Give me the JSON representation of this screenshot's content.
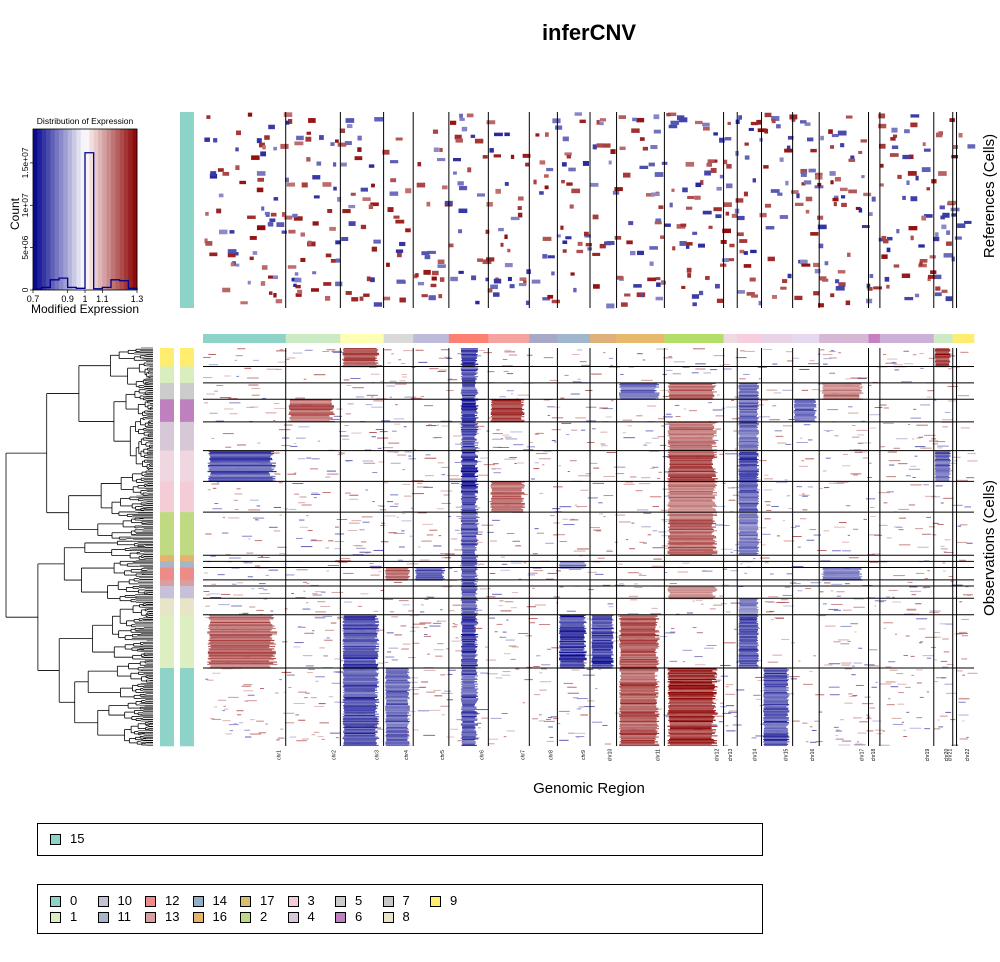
{
  "chart_data": {
    "type": "heatmap",
    "title": "inferCNV",
    "xlabel": "Genomic Region",
    "ylabel_references": "References (Cells)",
    "ylabel_observations": "Observations (Cells)",
    "chromosomes": [
      "chr1",
      "chr2",
      "chr3",
      "chr4",
      "chr5",
      "chr6",
      "chr7",
      "chr8",
      "chr9",
      "chr10",
      "chr11",
      "chr12",
      "chr13",
      "chr14",
      "chr15",
      "chr16",
      "chr17",
      "chr18",
      "chr19",
      "chr20",
      "chr21",
      "chr22"
    ],
    "chromosome_gene_share": [
      0.109,
      0.072,
      0.057,
      0.039,
      0.047,
      0.052,
      0.054,
      0.037,
      0.043,
      0.035,
      0.063,
      0.078,
      0.018,
      0.032,
      0.041,
      0.035,
      0.065,
      0.015,
      0.071,
      0.025,
      0.005,
      0.023
    ],
    "chromosome_colors": [
      "#8DD3C7",
      "#CCEBC5",
      "#FFFFB3",
      "#D9D9D9",
      "#BEBADA",
      "#FB8072",
      "#F4A3A0",
      "#A8A8C8",
      "#9FB6CC",
      "#E0B07A",
      "#E8B96A",
      "#B3DE69",
      "#F0D9E0",
      "#F8CDE0",
      "#E8D4E6",
      "#E6D8EE",
      "#D6B8D6",
      "#C77FC0",
      "#CCB0D8",
      "#CCEBC5",
      "#FFED6F",
      "#FFED6F"
    ],
    "expression_histogram": {
      "title": "Distribution of Expression",
      "xlabel": "Modified Expression",
      "ylabel": "Count",
      "x_ticks": [
        "0.7",
        "0.9",
        "1",
        "1.1",
        "1.3"
      ],
      "y_ticks": [
        "0",
        "5e+06",
        "1e+07",
        "1.5e+07"
      ],
      "xlim": [
        0.7,
        1.3
      ],
      "ylim": [
        0,
        19000000
      ],
      "bin_edges": [
        0.7,
        0.75,
        0.8,
        0.85,
        0.9,
        0.95,
        1.0,
        1.05,
        1.1,
        1.15,
        1.2,
        1.25,
        1.3
      ],
      "counts": [
        100000,
        300000,
        1200000,
        1400000,
        300000,
        200000,
        16200000,
        150000,
        300000,
        1200000,
        1100000,
        200000
      ],
      "color_scale": [
        "#00008B",
        "#FFFFFF",
        "#8B0000"
      ]
    },
    "reference_groups": [
      {
        "name": "15",
        "color": "#8DD3C7",
        "cells": 100
      }
    ],
    "observation_groups": [
      {
        "name": "9",
        "color": "#FFED6F",
        "cells": 18
      },
      {
        "name": "1",
        "color": "#D9EEBC",
        "cells": 16
      },
      {
        "name": "5",
        "color": "#CCCCCC",
        "cells": 16
      },
      {
        "name": "6",
        "color": "#BF80C0",
        "cells": 22
      },
      {
        "name": "4",
        "color": "#D7C8D8",
        "cells": 28
      },
      {
        "name": "3",
        "color": "#F0D6E0",
        "cells": 30
      },
      {
        "name": "3",
        "color": "#F4CCD6",
        "cells": 30
      },
      {
        "name": "2",
        "color": "#BFDA80",
        "cells": 42
      },
      {
        "name": "16",
        "color": "#E6B26E",
        "cells": 6
      },
      {
        "name": "11",
        "color": "#A8B4C8",
        "cells": 6
      },
      {
        "name": "12",
        "color": "#EE8B88",
        "cells": 12
      },
      {
        "name": "13",
        "color": "#DA9E9E",
        "cells": 6
      },
      {
        "name": "10",
        "color": "#C8C0D8",
        "cells": 12
      },
      {
        "name": "8",
        "color": "#E8E4C8",
        "cells": 16
      },
      {
        "name": "1",
        "color": "#DDEFC0",
        "cells": 52
      },
      {
        "name": "0",
        "color": "#8DD3C7",
        "cells": 76
      }
    ],
    "cnv_patterns": [
      {
        "group": 0,
        "chr": "chr3",
        "state": "gain",
        "strength": 0.9
      },
      {
        "group": 0,
        "chr": "chr6",
        "state": "loss",
        "strength": 0.9
      },
      {
        "group": 0,
        "chr": "chr20",
        "state": "gain",
        "strength": 0.9
      },
      {
        "group": 1,
        "chr": "chr6",
        "state": "loss",
        "strength": 0.8
      },
      {
        "group": 2,
        "chr": "chr6",
        "state": "loss",
        "strength": 0.8
      },
      {
        "group": 2,
        "chr": "chr11",
        "state": "loss",
        "strength": 0.7
      },
      {
        "group": 2,
        "chr": "chr12",
        "state": "gain",
        "strength": 0.7
      },
      {
        "group": 2,
        "chr": "chr14",
        "state": "loss",
        "strength": 0.7
      },
      {
        "group": 2,
        "chr": "chr17",
        "state": "gain",
        "strength": 0.6
      },
      {
        "group": 3,
        "chr": "chr6",
        "state": "loss",
        "strength": 0.9
      },
      {
        "group": 3,
        "chr": "chr2",
        "state": "gain",
        "strength": 0.7
      },
      {
        "group": 3,
        "chr": "chr7",
        "state": "gain",
        "strength": 0.9
      },
      {
        "group": 3,
        "chr": "chr14",
        "state": "loss",
        "strength": 0.7
      },
      {
        "group": 3,
        "chr": "chr16",
        "state": "loss",
        "strength": 0.7
      },
      {
        "group": 4,
        "chr": "chr6",
        "state": "loss",
        "strength": 0.8
      },
      {
        "group": 4,
        "chr": "chr12",
        "state": "gain",
        "strength": 0.7
      },
      {
        "group": 4,
        "chr": "chr14",
        "state": "loss",
        "strength": 0.7
      },
      {
        "group": 5,
        "chr": "chr1",
        "state": "loss",
        "strength": 0.8
      },
      {
        "group": 5,
        "chr": "chr6",
        "state": "loss",
        "strength": 0.9
      },
      {
        "group": 5,
        "chr": "chr12",
        "state": "gain",
        "strength": 0.8
      },
      {
        "group": 5,
        "chr": "chr14",
        "state": "loss",
        "strength": 0.8
      },
      {
        "group": 5,
        "chr": "chr20",
        "state": "loss",
        "strength": 0.7
      },
      {
        "group": 6,
        "chr": "chr6",
        "state": "loss",
        "strength": 0.9
      },
      {
        "group": 6,
        "chr": "chr7",
        "state": "gain",
        "strength": 0.7
      },
      {
        "group": 6,
        "chr": "chr12",
        "state": "gain",
        "strength": 0.6
      },
      {
        "group": 6,
        "chr": "chr14",
        "state": "loss",
        "strength": 0.7
      },
      {
        "group": 7,
        "chr": "chr6",
        "state": "loss",
        "strength": 0.8
      },
      {
        "group": 7,
        "chr": "chr12",
        "state": "gain",
        "strength": 0.7
      },
      {
        "group": 7,
        "chr": "chr14",
        "state": "loss",
        "strength": 0.6
      },
      {
        "group": 8,
        "chr": "chr6",
        "state": "loss",
        "strength": 0.8
      },
      {
        "group": 9,
        "chr": "chr6",
        "state": "loss",
        "strength": 0.8
      },
      {
        "group": 9,
        "chr": "chr9",
        "state": "loss",
        "strength": 0.6
      },
      {
        "group": 10,
        "chr": "chr5",
        "state": "loss",
        "strength": 0.8
      },
      {
        "group": 10,
        "chr": "chr4",
        "state": "gain",
        "strength": 0.7
      },
      {
        "group": 10,
        "chr": "chr6",
        "state": "loss",
        "strength": 0.8
      },
      {
        "group": 10,
        "chr": "chr17",
        "state": "loss",
        "strength": 0.6
      },
      {
        "group": 11,
        "chr": "chr6",
        "state": "loss",
        "strength": 0.8
      },
      {
        "group": 12,
        "chr": "chr6",
        "state": "loss",
        "strength": 0.8
      },
      {
        "group": 12,
        "chr": "chr12",
        "state": "gain",
        "strength": 0.6
      },
      {
        "group": 13,
        "chr": "chr6",
        "state": "loss",
        "strength": 0.8
      },
      {
        "group": 13,
        "chr": "chr14",
        "state": "loss",
        "strength": 0.6
      },
      {
        "group": 14,
        "chr": "chr1",
        "state": "gain",
        "strength": 0.7
      },
      {
        "group": 14,
        "chr": "chr3",
        "state": "loss",
        "strength": 0.8
      },
      {
        "group": 14,
        "chr": "chr6",
        "state": "loss",
        "strength": 0.9
      },
      {
        "group": 14,
        "chr": "chr9",
        "state": "loss",
        "strength": 0.9
      },
      {
        "group": 14,
        "chr": "chr10",
        "state": "loss",
        "strength": 0.9
      },
      {
        "group": 14,
        "chr": "chr11",
        "state": "gain",
        "strength": 0.8
      },
      {
        "group": 14,
        "chr": "chr14",
        "state": "loss",
        "strength": 0.8
      },
      {
        "group": 15,
        "chr": "chr3",
        "state": "loss",
        "strength": 0.8
      },
      {
        "group": 15,
        "chr": "chr4",
        "state": "loss",
        "strength": 0.7
      },
      {
        "group": 15,
        "chr": "chr6",
        "state": "loss",
        "strength": 0.8
      },
      {
        "group": 15,
        "chr": "chr11",
        "state": "gain",
        "strength": 0.8
      },
      {
        "group": 15,
        "chr": "chr12",
        "state": "gain",
        "strength": 1.0
      },
      {
        "group": 15,
        "chr": "chr15",
        "state": "loss",
        "strength": 0.8
      }
    ],
    "legends": {
      "references": [
        {
          "label": "15",
          "color": "#8DD3C7"
        }
      ],
      "observations": [
        {
          "label": "0",
          "color": "#8DD3C7"
        },
        {
          "label": "1",
          "color": "#DDEFC0"
        },
        {
          "label": "10",
          "color": "#C8C0D8"
        },
        {
          "label": "11",
          "color": "#A8B4C8"
        },
        {
          "label": "12",
          "color": "#EE8B88"
        },
        {
          "label": "13",
          "color": "#DA9E9E"
        },
        {
          "label": "14",
          "color": "#8FB0C8"
        },
        {
          "label": "16",
          "color": "#E6B26E"
        },
        {
          "label": "17",
          "color": "#D6C070"
        },
        {
          "label": "2",
          "color": "#BFDA80"
        },
        {
          "label": "3",
          "color": "#F4CCD6"
        },
        {
          "label": "4",
          "color": "#D7C8D8"
        },
        {
          "label": "5",
          "color": "#CCCCCC"
        },
        {
          "label": "6",
          "color": "#BF80C0"
        },
        {
          "label": "7",
          "color": "#C8C8C8"
        },
        {
          "label": "8",
          "color": "#E8E4C8"
        },
        {
          "label": "9",
          "color": "#FFED6F"
        }
      ]
    }
  }
}
